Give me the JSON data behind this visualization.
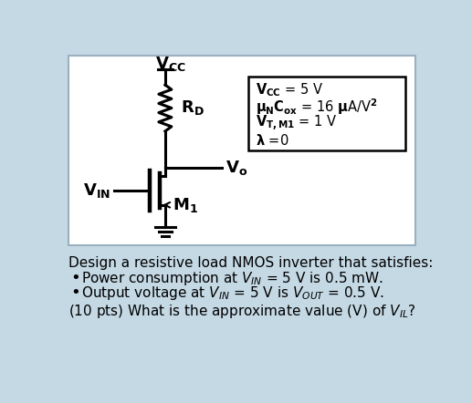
{
  "bg_color": "#c5d9e5",
  "panel_color": "#ffffff",
  "box_text_lines": [
    "$\\mathbf{V_{CC}}$ = 5 V",
    "$\\mathbf{\\mu_N C_{ox}}$ = 16 $\\mathbf{\\mu}$A/V$\\mathbf{^2}$",
    "$\\mathbf{V_{T,M1}}$ = 1 V",
    "$\\mathbf{\\lambda}$ =0"
  ],
  "lw": 2.2,
  "circuit_color": "#000000",
  "vcc_label": "$\\mathbf{V_{CC}}$",
  "rd_label": "$\\mathbf{R_D}$",
  "vo_label": "$\\mathbf{V_o}$",
  "vin_label": "$\\mathbf{V_{IN}}$",
  "m1_label": "$\\mathbf{M_1}$",
  "label_fs": 13,
  "body_fs": 11,
  "problem_line1": "Design a resistive load NMOS inverter that satisfies:",
  "bullet1": "Power consumption at $V_{IN}$ = 5 V is 0.5 mW.",
  "bullet2": "Output voltage at $V_{IN}$ = 5 V is $V_{OUT}$ = 0.5 V.",
  "lastline": "(10 pts) What is the approximate value (V) of $V_{IL}$?"
}
